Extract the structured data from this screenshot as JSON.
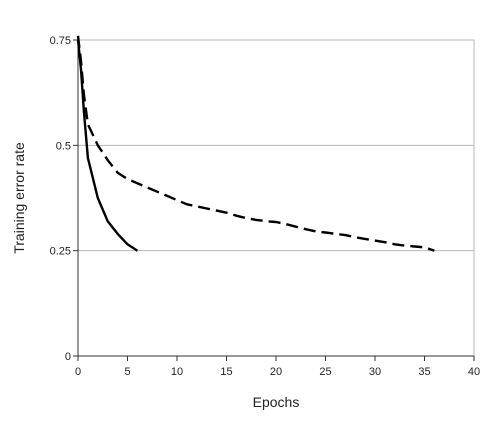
{
  "chart_data": {
    "type": "line",
    "title": "",
    "xlabel": "Epochs",
    "ylabel": "Training error rate",
    "xlim": [
      0,
      40
    ],
    "ylim": [
      0,
      0.75
    ],
    "xticks": [
      0,
      5,
      10,
      15,
      20,
      25,
      30,
      35,
      40
    ],
    "yticks": [
      0,
      0.25,
      0.5,
      0.75
    ],
    "xtick_labels": [
      "0",
      "5",
      "10",
      "15",
      "20",
      "25",
      "30",
      "35",
      "40"
    ],
    "ytick_labels": [
      "0",
      "0.25",
      "0.5",
      "0.75"
    ],
    "grid": "horizontal",
    "legend": "none",
    "series": [
      {
        "style": "solid",
        "color": "#000000",
        "x": [
          0,
          0.3,
          0.6,
          1,
          2,
          3,
          4,
          5,
          6
        ],
        "y": [
          0.75,
          0.68,
          0.58,
          0.47,
          0.375,
          0.32,
          0.29,
          0.265,
          0.25
        ]
      },
      {
        "style": "dashed",
        "color": "#000000",
        "x": [
          0,
          0.3,
          0.6,
          1,
          2,
          3,
          4,
          5,
          6,
          7,
          8,
          9,
          10,
          11,
          12,
          13,
          14,
          15,
          16,
          17,
          18,
          19,
          20,
          21,
          22,
          23,
          24,
          25,
          26,
          27,
          28,
          29,
          30,
          31,
          32,
          33,
          34,
          35,
          36
        ],
        "y": [
          0.76,
          0.7,
          0.62,
          0.55,
          0.5,
          0.465,
          0.435,
          0.42,
          0.41,
          0.4,
          0.39,
          0.38,
          0.37,
          0.36,
          0.355,
          0.35,
          0.345,
          0.34,
          0.333,
          0.327,
          0.323,
          0.32,
          0.318,
          0.313,
          0.307,
          0.301,
          0.296,
          0.293,
          0.29,
          0.287,
          0.282,
          0.278,
          0.274,
          0.27,
          0.265,
          0.262,
          0.26,
          0.258,
          0.25
        ]
      }
    ]
  }
}
